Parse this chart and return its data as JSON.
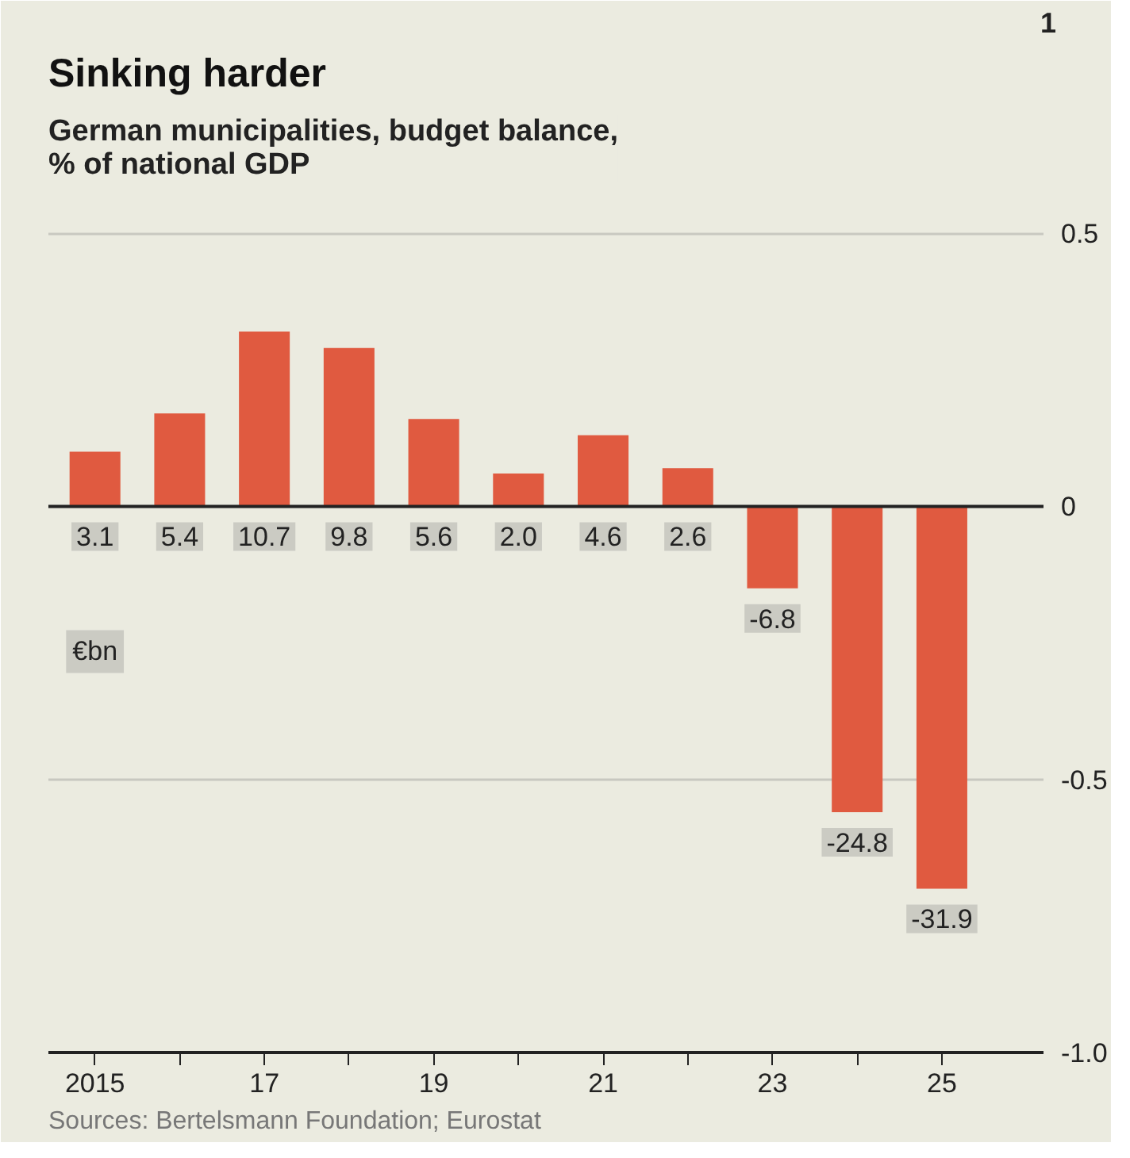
{
  "chart_data": {
    "type": "bar",
    "title": "Sinking harder",
    "subtitle": "German municipalities, budget balance,\n% of national GDP",
    "x": [
      2015,
      2016,
      2017,
      2018,
      2019,
      2020,
      2021,
      2022,
      2023,
      2024,
      2025
    ],
    "values": [
      0.1,
      0.17,
      0.32,
      0.29,
      0.16,
      0.06,
      0.13,
      0.07,
      -0.15,
      -0.56,
      -0.7
    ],
    "color": "#e05a40",
    "xlim": [
      2014.45,
      2026.2
    ],
    "xticks": [
      2015,
      {
        "value": 2016,
        "label": null
      },
      {
        "value": 2017,
        "label": "17"
      },
      {
        "value": 2018,
        "label": null
      },
      {
        "value": 2019,
        "label": "19"
      },
      {
        "value": 2020,
        "label": null
      },
      {
        "value": 2021,
        "label": "21"
      },
      {
        "value": 2022,
        "label": null
      },
      {
        "value": 2023,
        "label": "23"
      },
      {
        "value": 2024,
        "label": null
      },
      {
        "value": 2025,
        "label": "25"
      }
    ],
    "ylim": [
      -1.0,
      0.58
    ],
    "yticks": [
      {
        "value": 0.5,
        "label": "0.5"
      },
      0,
      {
        "value": -0.5,
        "label": "-0.5"
      },
      {
        "value": -1.0,
        "label": "-1.0"
      }
    ],
    "grid": "y",
    "ref_lines": [
      {
        "axis": "y",
        "value": 0,
        "color": "#222222"
      }
    ],
    "annotations": [
      "1",
      "€bn",
      "Sources: Bertelsmann Foundation; Eurostat",
      {
        "text": "3.1",
        "x": 2015,
        "y": 0
      },
      {
        "text": "5.4",
        "x": 2016,
        "y": 0
      },
      {
        "text": "10.7",
        "x": 2017,
        "y": 0
      },
      {
        "text": "9.8",
        "x": 2018,
        "y": 0
      },
      {
        "text": "5.6",
        "x": 2019,
        "y": 0
      },
      {
        "text": "2.0",
        "x": 2020,
        "y": 0
      },
      {
        "text": "4.6",
        "x": 2021,
        "y": 0
      },
      {
        "text": "2.6",
        "x": 2022,
        "y": 0
      },
      {
        "text": "-6.8",
        "x": 2023,
        "y": -0.15
      },
      {
        "text": "-24.8",
        "x": 2024,
        "y": -0.56
      },
      {
        "text": "-31.9",
        "x": 2025,
        "y": -0.7
      }
    ]
  }
}
